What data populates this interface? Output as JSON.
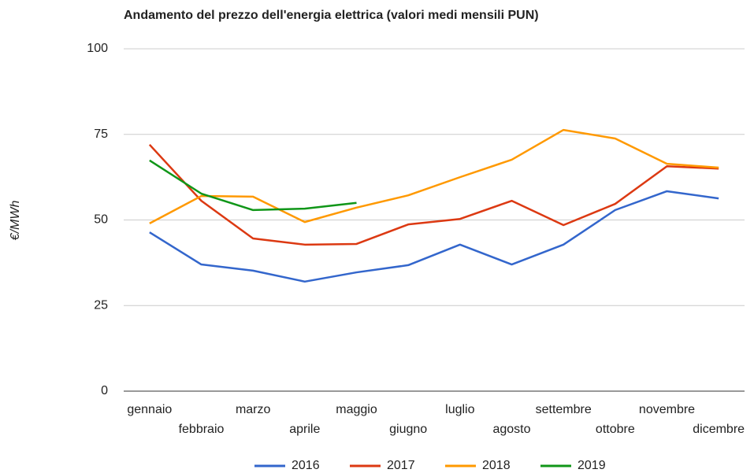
{
  "chart_data": {
    "type": "line",
    "title": "Andamento del prezzo dell'energia elettrica (valori medi mensili PUN)",
    "y_label": "€/MWh",
    "categories": [
      "gennaio",
      "febbraio",
      "marzo",
      "aprile",
      "maggio",
      "giugno",
      "luglio",
      "agosto",
      "settembre",
      "ottobre",
      "novembre",
      "dicembre"
    ],
    "series": [
      {
        "name": "2016",
        "color": "#3366cc",
        "values": [
          46.4,
          37,
          35.2,
          32,
          34.7,
          36.8,
          42.8,
          37,
          42.8,
          52.9,
          58.4,
          56.3
        ]
      },
      {
        "name": "2017",
        "color": "#dc3912",
        "values": [
          72,
          55.6,
          44.6,
          42.8,
          43,
          48.7,
          50.3,
          55.6,
          48.5,
          54.7,
          65.7,
          65
        ]
      },
      {
        "name": "2018",
        "color": "#ff9900",
        "values": [
          49,
          57,
          56.8,
          49.4,
          53.6,
          57.2,
          62.5,
          67.6,
          76.3,
          73.8,
          66.4,
          65.3
        ]
      },
      {
        "name": "2019",
        "color": "#109618",
        "values": [
          67.4,
          57.7,
          52.9,
          53.3,
          55,
          null,
          null,
          null,
          null,
          null,
          null,
          null
        ]
      }
    ],
    "ylim": [
      0,
      100
    ],
    "yticks": [
      0,
      25,
      50,
      75,
      100
    ],
    "grid": true,
    "legend": "bottom"
  }
}
